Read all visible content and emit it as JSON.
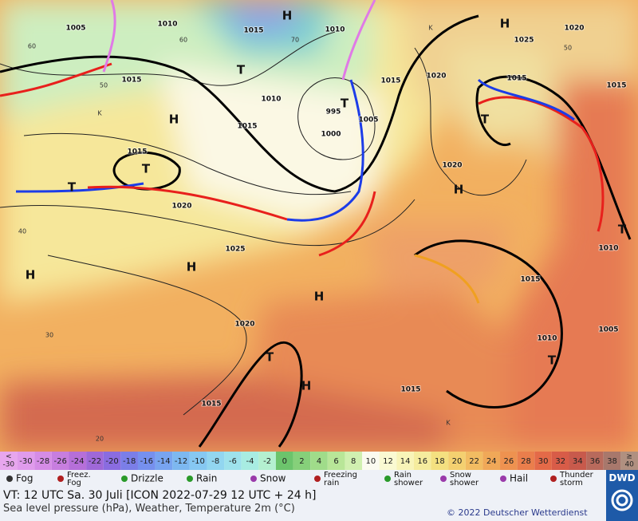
{
  "map": {
    "labels": [
      "1010",
      "1005",
      "1015",
      "1015",
      "1010",
      "1015",
      "1015",
      "1020",
      "1025",
      "1020",
      "1015",
      "1015",
      "1010",
      "1005",
      "1010",
      "1015",
      "1020",
      "1015",
      "1020",
      "1025",
      "1020",
      "1015",
      "1015",
      "1005",
      "995",
      "1000",
      "1010",
      "H",
      "H",
      "H",
      "H",
      "H",
      "H",
      "H",
      "T",
      "T",
      "T",
      "T",
      "T",
      "T",
      "T",
      "T",
      "H",
      "60",
      "50",
      "40",
      "30",
      "20",
      "70",
      "60",
      "50",
      "K",
      "K",
      "K"
    ]
  },
  "scale": {
    "cells": [
      {
        "top": "<",
        "label": "-30",
        "color": "#e7a6ee"
      },
      {
        "label": "-30",
        "color": "#e09bec"
      },
      {
        "label": "-28",
        "color": "#d58ce6"
      },
      {
        "label": "-26",
        "color": "#c77edf"
      },
      {
        "label": "-24",
        "color": "#b66fd9"
      },
      {
        "label": "-22",
        "color": "#9f68d8"
      },
      {
        "label": "-20",
        "color": "#8a6ce0"
      },
      {
        "label": "-18",
        "color": "#7b7ee8"
      },
      {
        "label": "-16",
        "color": "#7690ee"
      },
      {
        "label": "-14",
        "color": "#78a4f0"
      },
      {
        "label": "-12",
        "color": "#7db8f0"
      },
      {
        "label": "-10",
        "color": "#86c8f2"
      },
      {
        "label": "-8",
        "color": "#92d6f0"
      },
      {
        "label": "-6",
        "color": "#9ee2ec"
      },
      {
        "label": "-4",
        "color": "#a8ece2"
      },
      {
        "label": "-2",
        "color": "#b4f0d0"
      },
      {
        "label": "0",
        "color": "#6cc46c"
      },
      {
        "label": "2",
        "color": "#86d07a"
      },
      {
        "label": "4",
        "color": "#a0dc8a"
      },
      {
        "label": "6",
        "color": "#b8e698"
      },
      {
        "label": "8",
        "color": "#d0f0b0"
      },
      {
        "label": "10",
        "color": "#fbfbf0"
      },
      {
        "label": "12",
        "color": "#fafad2"
      },
      {
        "label": "14",
        "color": "#f8f4b8"
      },
      {
        "label": "16",
        "color": "#f5ec9e"
      },
      {
        "label": "18",
        "color": "#f4e080"
      },
      {
        "label": "20",
        "color": "#f4d070"
      },
      {
        "label": "22",
        "color": "#f2bc62"
      },
      {
        "label": "24",
        "color": "#f0a858"
      },
      {
        "label": "26",
        "color": "#ee9250"
      },
      {
        "label": "28",
        "color": "#ea7e4c"
      },
      {
        "label": "30",
        "color": "#e46a48"
      },
      {
        "label": "32",
        "color": "#d85c48"
      },
      {
        "label": "34",
        "color": "#c85a4c"
      },
      {
        "label": "36",
        "color": "#b86a5c"
      },
      {
        "label": "38",
        "color": "#a8786c"
      },
      {
        "top": "≥",
        "label": "40",
        "color": "#b09080"
      }
    ]
  },
  "legend": {
    "items": [
      [
        "Fog"
      ],
      [
        "Freez.",
        "Fog"
      ],
      [
        "Drizzle"
      ],
      [
        "Rain"
      ],
      [
        "Snow"
      ],
      [
        "Freezing",
        "rain"
      ],
      [
        "Rain",
        "shower"
      ],
      [
        "Snow",
        "shower"
      ],
      [
        "Hail"
      ],
      [
        "Thunder",
        "storm"
      ]
    ]
  },
  "footer": {
    "valid_time": "VT: 12 UTC Sa.   30 Juli [ICON 2022-07-29  12 UTC + 24 h]",
    "description": "Sea level pressure (hPa), Weather, Temperature 2m (°C)",
    "copyright": "© 2022 Deutscher Wetterdienst",
    "logo": "DWD"
  }
}
